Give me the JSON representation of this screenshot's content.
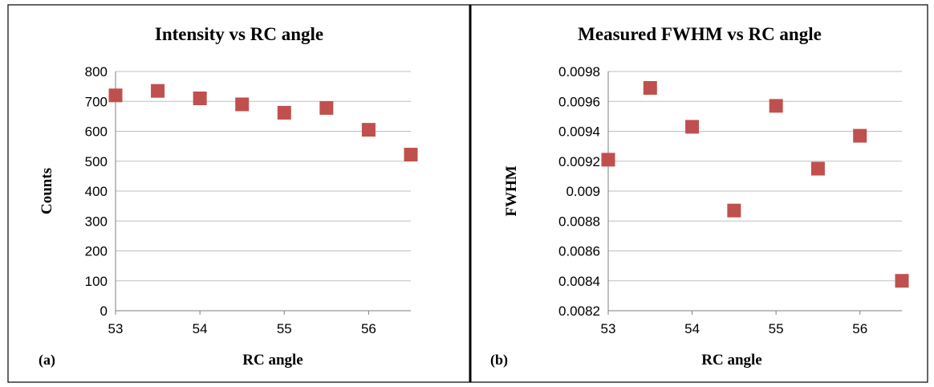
{
  "chart_data": [
    {
      "type": "scatter",
      "panel_label": "(a)",
      "title": "Intensity vs RC angle",
      "xlabel": "RC angle",
      "ylabel": "Counts",
      "x_ticks": [
        "53",
        "54",
        "55",
        "56"
      ],
      "y_ticks": [
        "0",
        "100",
        "200",
        "300",
        "400",
        "500",
        "600",
        "700",
        "800"
      ],
      "xlim": [
        53,
        56.5
      ],
      "ylim": [
        0,
        800
      ],
      "grid": "horizontal",
      "marker_color": "#c0504d",
      "x": [
        53,
        53.5,
        54,
        54.5,
        55,
        55.5,
        56,
        56.5
      ],
      "y": [
        720,
        735,
        710,
        690,
        662,
        678,
        605,
        522
      ]
    },
    {
      "type": "scatter",
      "panel_label": "(b)",
      "title": "Measured FWHM vs RC angle",
      "xlabel": "RC angle",
      "ylabel": "FWHM",
      "x_ticks": [
        "53",
        "54",
        "55",
        "56"
      ],
      "y_ticks": [
        "0.0082",
        "0.0084",
        "0.0086",
        "0.0088",
        "0.009",
        "0.0092",
        "0.0094",
        "0.0096",
        "0.0098"
      ],
      "xlim": [
        53,
        56.5
      ],
      "ylim": [
        0.0082,
        0.0098
      ],
      "grid": "horizontal",
      "marker_color": "#c0504d",
      "x": [
        53,
        53.5,
        54,
        54.5,
        55,
        55.5,
        56,
        56.5
      ],
      "y": [
        0.00921,
        0.00969,
        0.00943,
        0.00887,
        0.00957,
        0.00915,
        0.00937,
        0.0084
      ]
    }
  ]
}
